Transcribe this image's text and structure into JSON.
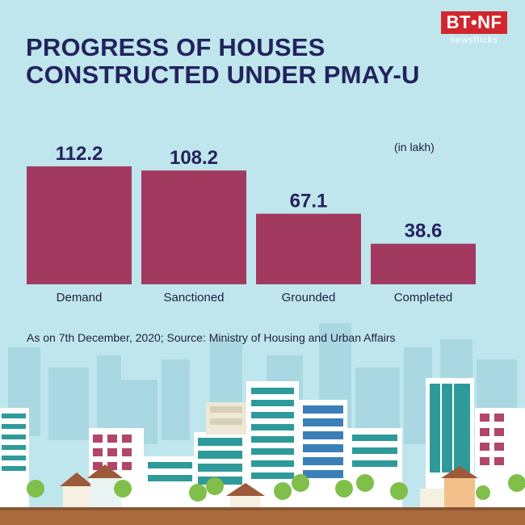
{
  "title_lines": [
    "PROGRESS OF HOUSES",
    "CONSTRUCTED UNDER PMAY-U"
  ],
  "logo": {
    "main": "BT•NF",
    "sub": "newsflicks"
  },
  "unit_note": "(in lakh)",
  "source_note": "As on 7th December, 2020; Source: Ministry of Housing and Urban Affairs",
  "colors": {
    "bar": "#a23a60",
    "title": "#23225e",
    "background": "#bfe6ec",
    "logo": "#d2262f"
  },
  "chart_data": {
    "type": "bar",
    "title": "PROGRESS OF HOUSES CONSTRUCTED UNDER PMAY-U",
    "categories": [
      "Demand",
      "Sanctioned",
      "Grounded",
      "Completed"
    ],
    "values": [
      112.2,
      108.2,
      67.1,
      38.6
    ],
    "value_labels": [
      "112.2",
      "108.2",
      "67.1",
      "38.6"
    ],
    "unit": "(in lakh)",
    "grid": false,
    "legend": "none"
  }
}
